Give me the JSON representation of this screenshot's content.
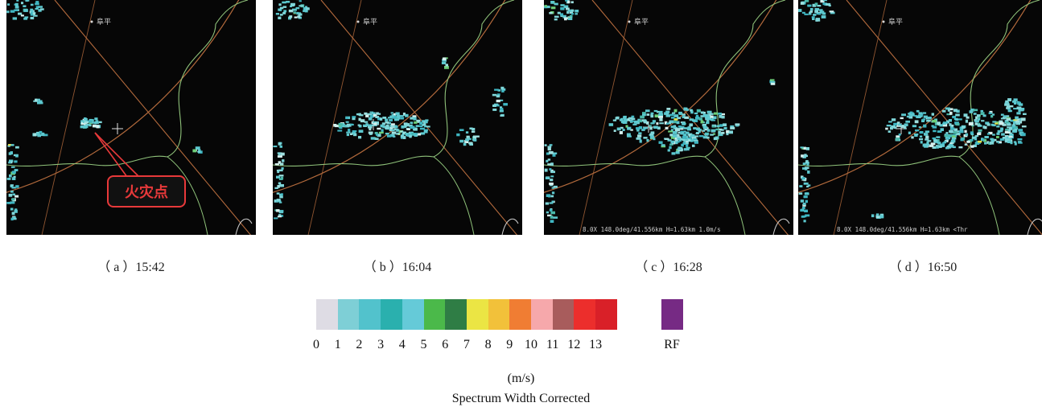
{
  "panels": [
    {
      "id": "a",
      "caption": "（ a ）15:42",
      "map_label": "阜平",
      "annotation": "火灾点",
      "status_text": ""
    },
    {
      "id": "b",
      "caption": "（ b ）16:04",
      "map_label": "阜平",
      "annotation": "",
      "status_text": ""
    },
    {
      "id": "c",
      "caption": "（ c ）16:28",
      "map_label": "阜平",
      "annotation": "",
      "status_text": "8.0X 148.0deg/41.556km H=1.63km 1.0m/s"
    },
    {
      "id": "d",
      "caption": "（ d ）16:50",
      "map_label": "阜平",
      "annotation": "",
      "status_text": "8.0X 148.0deg/41.556km H=1.63km <Thr"
    }
  ],
  "colorbar": {
    "ticks": [
      "0",
      "1",
      "2",
      "3",
      "4",
      "5",
      "6",
      "7",
      "8",
      "9",
      "10",
      "11",
      "12",
      "13"
    ],
    "colors": [
      "#dedce4",
      "#7ecfd6",
      "#52c2cc",
      "#2ab0ae",
      "#65cad8",
      "#4bb94a",
      "#2f7d45",
      "#ebe544",
      "#f2c13a",
      "#f07d33",
      "#f6a8ab",
      "#a85c5c",
      "#ec2e2c",
      "#d92028"
    ],
    "rf_label": "RF",
    "rf_color": "#762a84",
    "unit": "(m/s)",
    "title": "Spectrum Width Corrected"
  },
  "colors": {
    "radar_bg": "#060606",
    "range_line": "#b36a3c",
    "county_line": "#8fc27a",
    "annotation": "#e8393a",
    "echo": "#5cc8cf"
  }
}
